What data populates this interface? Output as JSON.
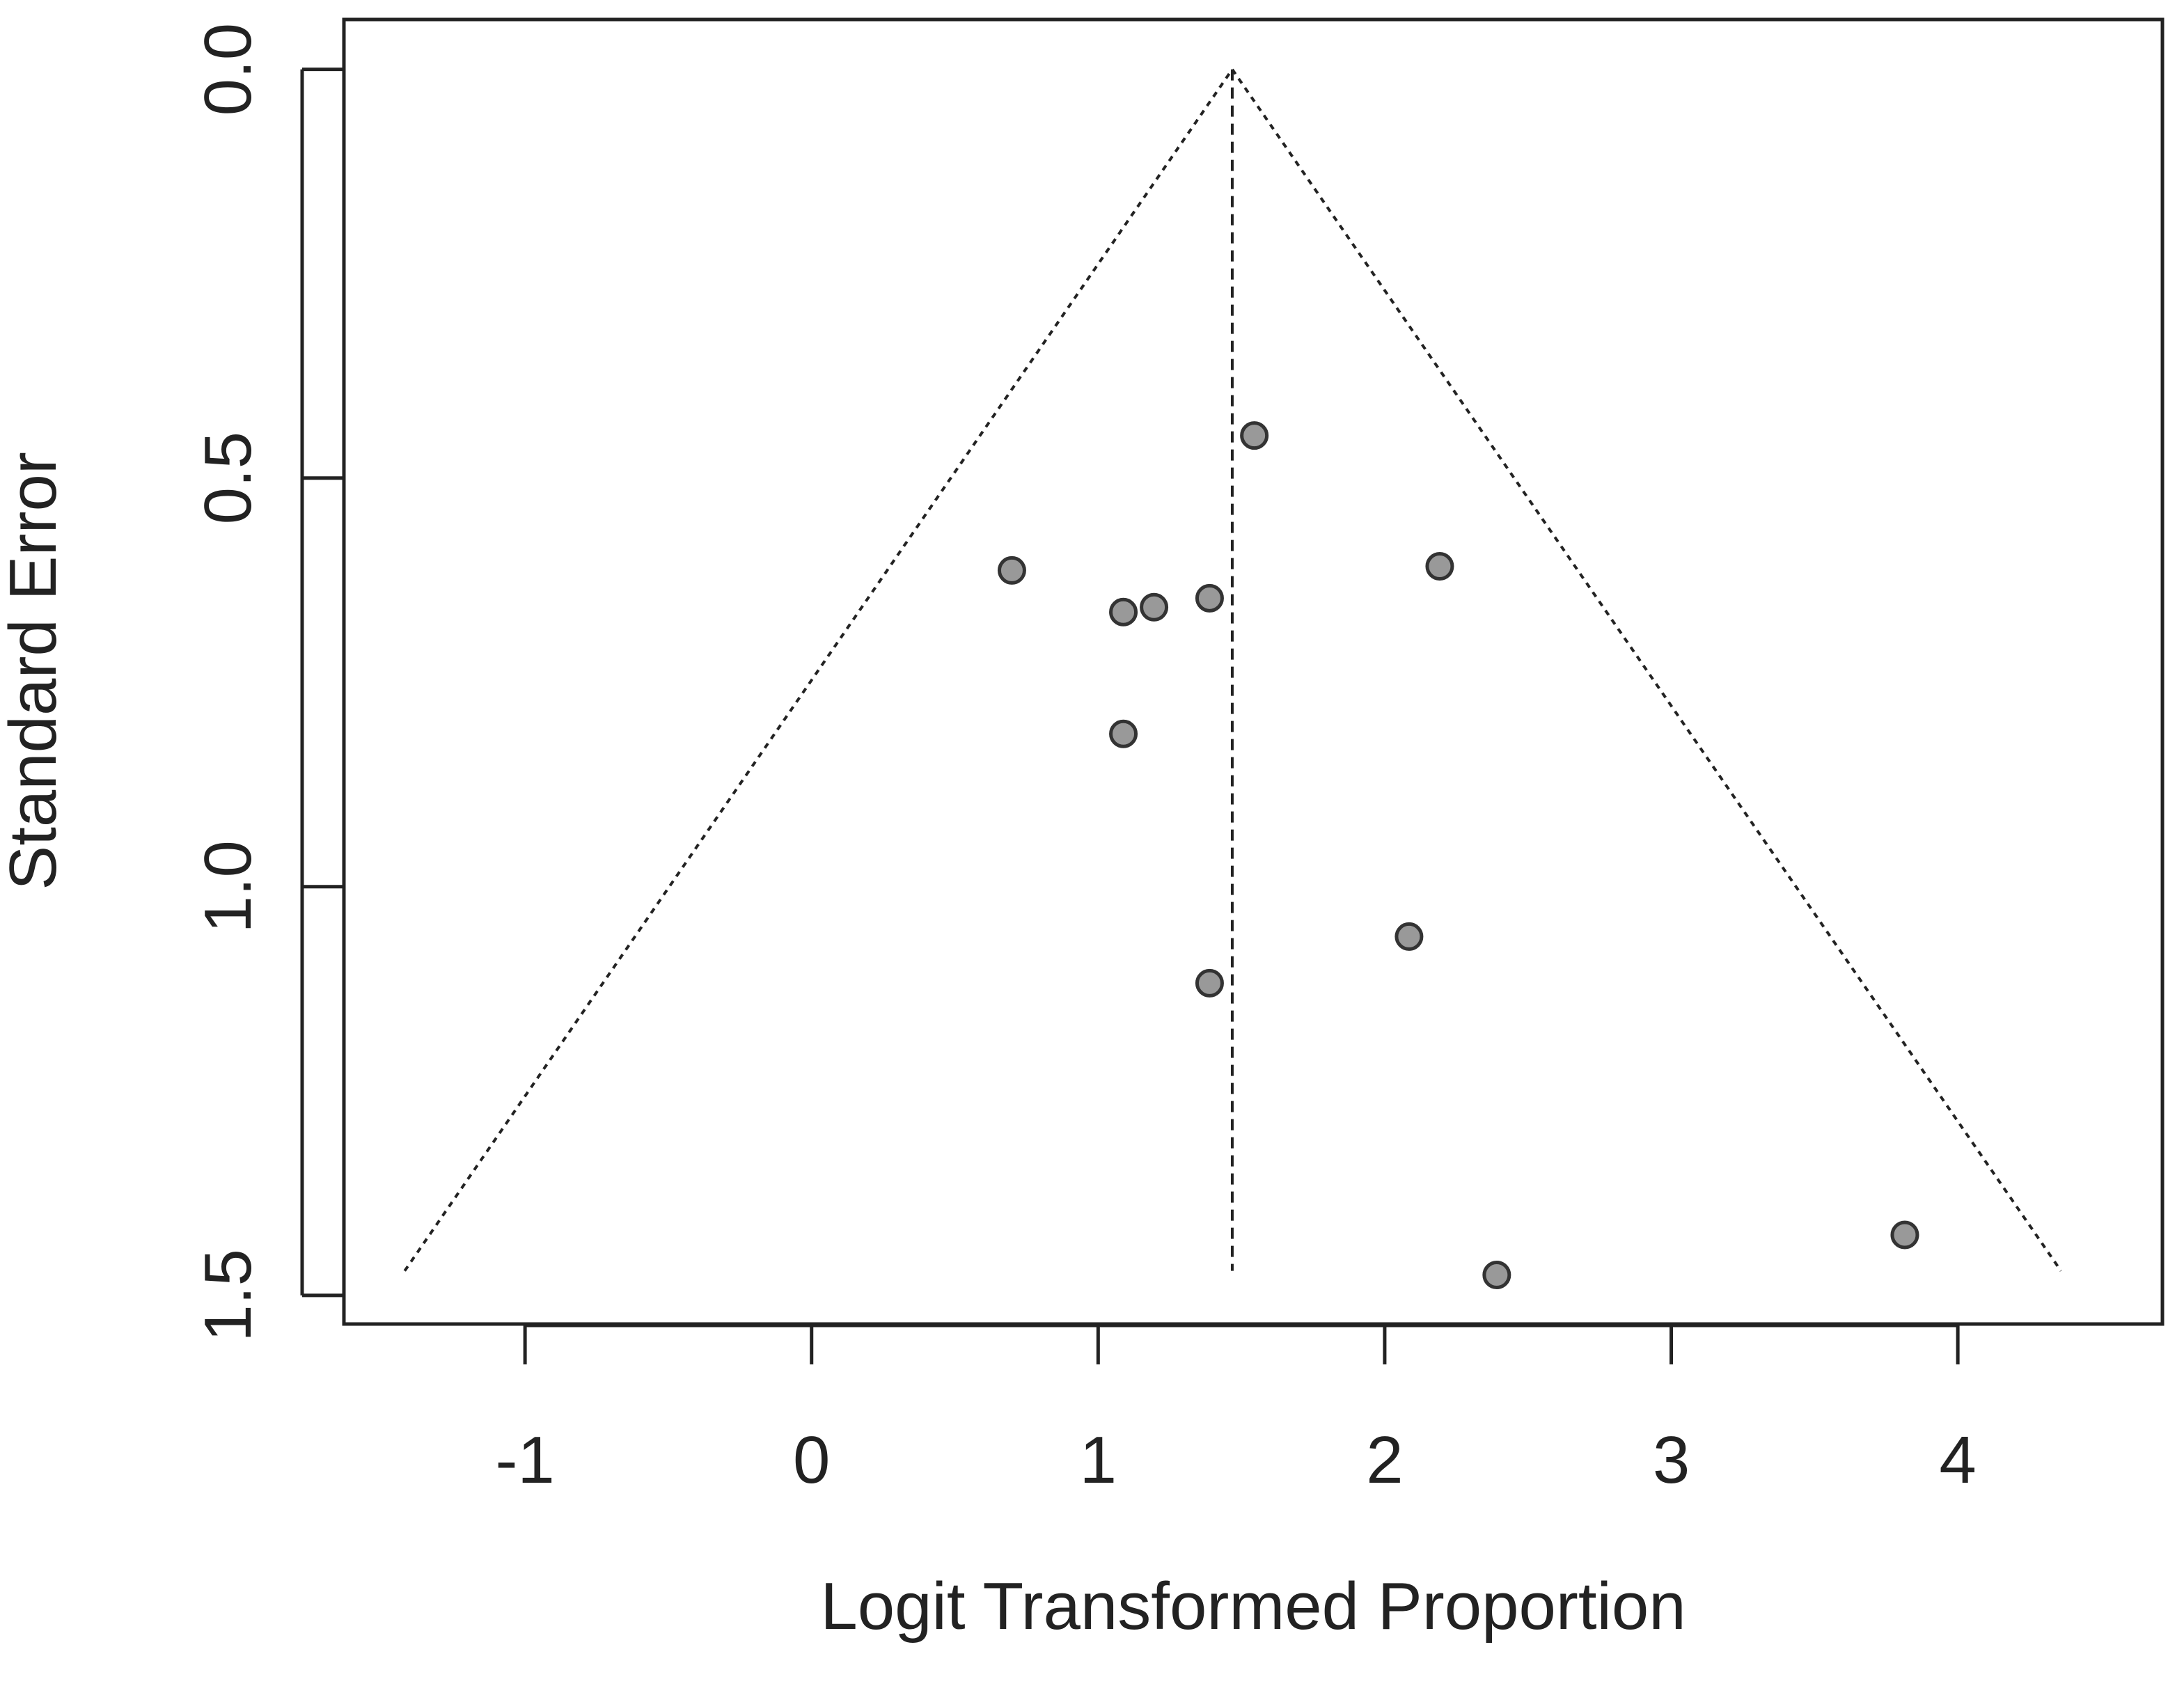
{
  "chart_data": {
    "type": "scatter",
    "x_label": "Logit Transformed Proportion",
    "y_label": "Standard Error",
    "xlim": [
      -1.632,
      4.714
    ],
    "ylim": [
      1.535,
      -0.061
    ],
    "xticks": [
      -1,
      0,
      1,
      2,
      3,
      4
    ],
    "yticks": [
      {
        "value": 0,
        "label": "0.0"
      },
      0.5,
      {
        "value": 1,
        "label": "1.0"
      },
      1.5
    ],
    "series": [
      {
        "color": "#999999",
        "x": [
          0.699,
          1.088,
          1.195,
          1.389,
          1.545,
          2.192,
          1.088,
          2.085,
          1.389,
          3.815,
          2.391
        ],
        "values": [
          0.613,
          0.664,
          0.658,
          0.647,
          0.448,
          0.608,
          0.813,
          1.061,
          1.118,
          1.426,
          1.475
        ]
      }
    ],
    "reference_lines": [
      {
        "x": [
          -1.42,
          1.468,
          4.36
        ],
        "values": [
          1.47,
          0,
          1.47
        ]
      },
      {
        "x": [
          1.468,
          1.468
        ],
        "values": [
          0,
          1.47
        ]
      }
    ]
  }
}
